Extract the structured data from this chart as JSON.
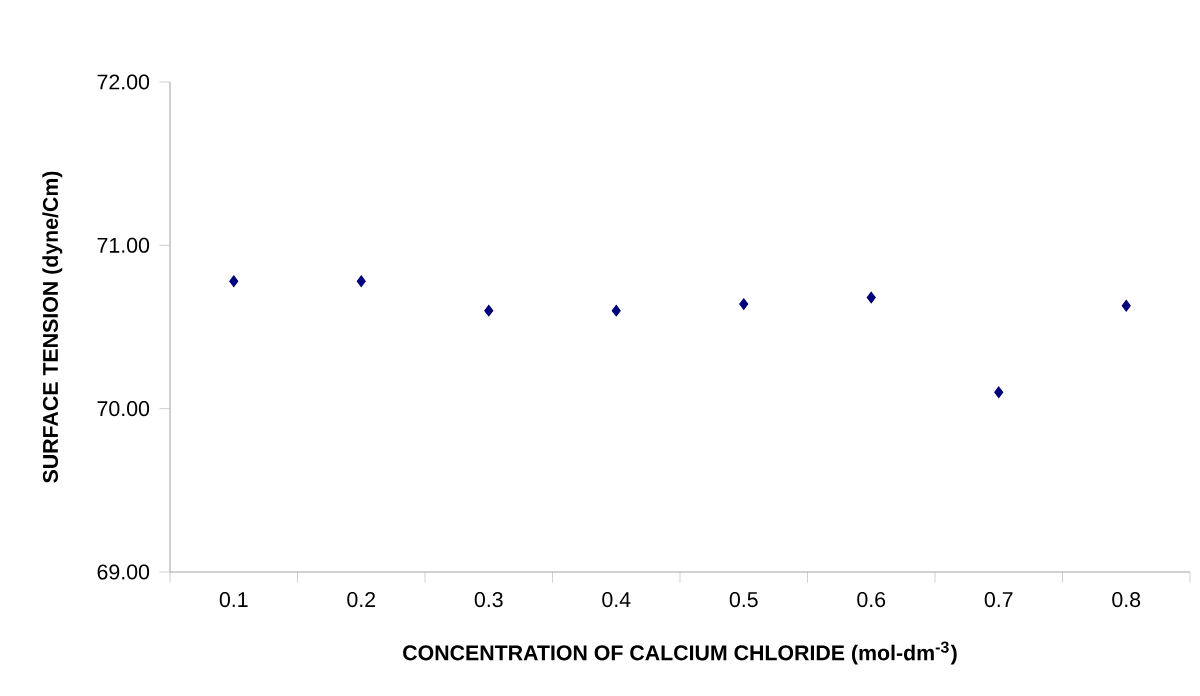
{
  "chart_data": {
    "type": "scatter",
    "xlabel": "CONCENTRATION OF CALCIUM CHLORIDE (mol-dm$^{-3}$)",
    "ylabel": "SURFACE TENSION (dyne/Cm)",
    "categories": [
      "0.1",
      "0.2",
      "0.3",
      "0.4",
      "0.5",
      "0.6",
      "0.7",
      "0.8"
    ],
    "values": [
      70.78,
      70.78,
      70.6,
      70.6,
      70.64,
      70.68,
      70.1,
      70.63
    ],
    "color": "#000080",
    "marker": "diamond",
    "ylim": [
      69,
      72
    ],
    "yticks": [
      {
        "value": 69,
        "label": "69.00"
      },
      {
        "value": 70,
        "label": "70.00"
      },
      {
        "value": 71,
        "label": "71.00"
      },
      {
        "value": 72,
        "label": "72.00"
      }
    ],
    "grid": false
  }
}
